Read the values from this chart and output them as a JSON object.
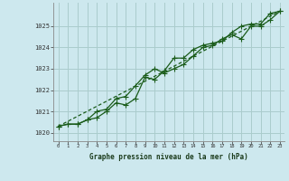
{
  "title": "Graphe pression niveau de la mer (hPa)",
  "bg_color": "#cde8ee",
  "grid_color": "#aacccc",
  "line_color": "#1a5c1a",
  "x_ticks": [
    0,
    1,
    2,
    3,
    4,
    5,
    6,
    7,
    8,
    9,
    10,
    11,
    12,
    13,
    14,
    15,
    16,
    17,
    18,
    19,
    20,
    21,
    22,
    23
  ],
  "y_ticks": [
    1020,
    1021,
    1022,
    1023,
    1024,
    1025
  ],
  "ylim": [
    1019.6,
    1026.1
  ],
  "xlim": [
    -0.5,
    23.5
  ],
  "series1_y": [
    1020.3,
    1020.4,
    1020.4,
    1020.6,
    1020.7,
    1021.0,
    1021.4,
    1021.3,
    1021.6,
    1022.6,
    1022.5,
    1022.9,
    1023.5,
    1023.5,
    1023.9,
    1024.1,
    1024.2,
    1024.3,
    1024.7,
    1025.0,
    1025.1,
    1025.1,
    1025.6,
    1025.7
  ],
  "series2_y": [
    1020.3,
    1020.4,
    1020.4,
    1020.6,
    1021.0,
    1021.1,
    1021.6,
    1021.7,
    1022.2,
    1022.7,
    1023.0,
    1022.8,
    1023.0,
    1023.2,
    1023.6,
    1024.0,
    1024.1,
    1024.4,
    1024.6,
    1024.4,
    1025.0,
    1025.0,
    1025.3,
    1025.7
  ],
  "trend_x": [
    0,
    23
  ],
  "trend_y": [
    1020.3,
    1025.7
  ],
  "marker": "P",
  "markersize": 2.2,
  "linewidth": 0.9
}
